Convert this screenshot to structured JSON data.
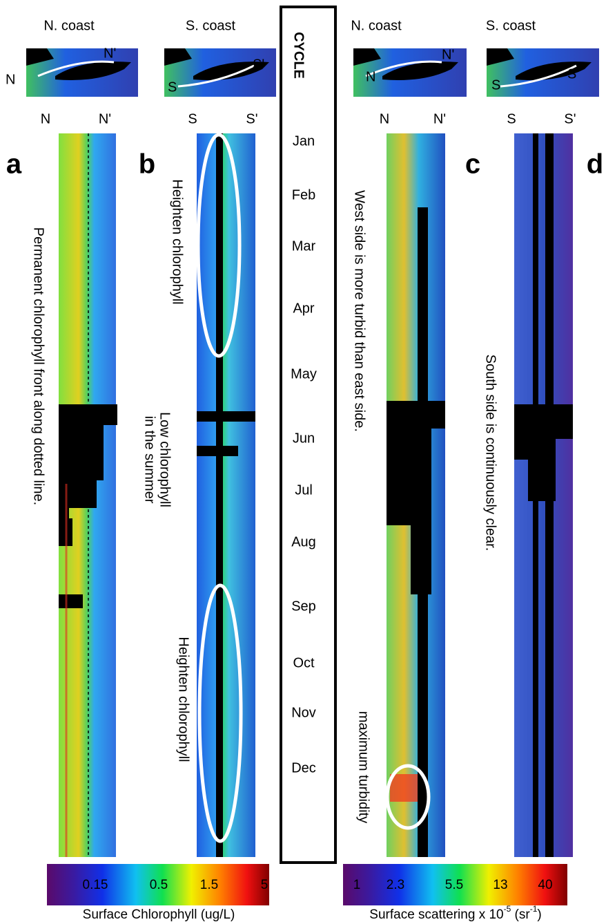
{
  "headers": [
    "N. coast",
    "S.  coast",
    "N. coast",
    "S. coast"
  ],
  "cycle": "CYCLE",
  "map_labels": [
    "N",
    "N'",
    "S",
    "S'",
    "N",
    "N'",
    "S",
    "S'"
  ],
  "axis_labels": [
    "N",
    "N'",
    "S",
    "S'",
    "N",
    "N'",
    "S",
    "S'"
  ],
  "panels": [
    "a",
    "b",
    "c",
    "d"
  ],
  "months": [
    "Jan",
    "Feb",
    "Mar",
    "Apr",
    "May",
    "Jun",
    "Jul",
    "Aug",
    "Sep",
    "Oct",
    "Nov",
    "Dec"
  ],
  "annotations": {
    "a": "Permanent chlorophyll  front along dotted line.",
    "b_top": "Heighten chlorophyll",
    "b_mid": [
      "Low chlorophyll",
      "in the summer"
    ],
    "b_bottom": "Heighten chlorophyll",
    "c_top": "West side is more turbid than east side.",
    "c_bottom": "maximum turbidity",
    "d": "South side is continuously clear."
  },
  "colorbars": [
    {
      "ticks": [
        "0.15",
        "0.5",
        "1.5",
        "5"
      ],
      "title": "Surface Chlorophyll   (ug/L)"
    },
    {
      "ticks": [
        "1",
        "2.3",
        "5.5",
        "13",
        "40"
      ],
      "title": [
        "Surface scattering x 10",
        "-5",
        "  (sr",
        "-1",
        ")"
      ]
    }
  ]
}
